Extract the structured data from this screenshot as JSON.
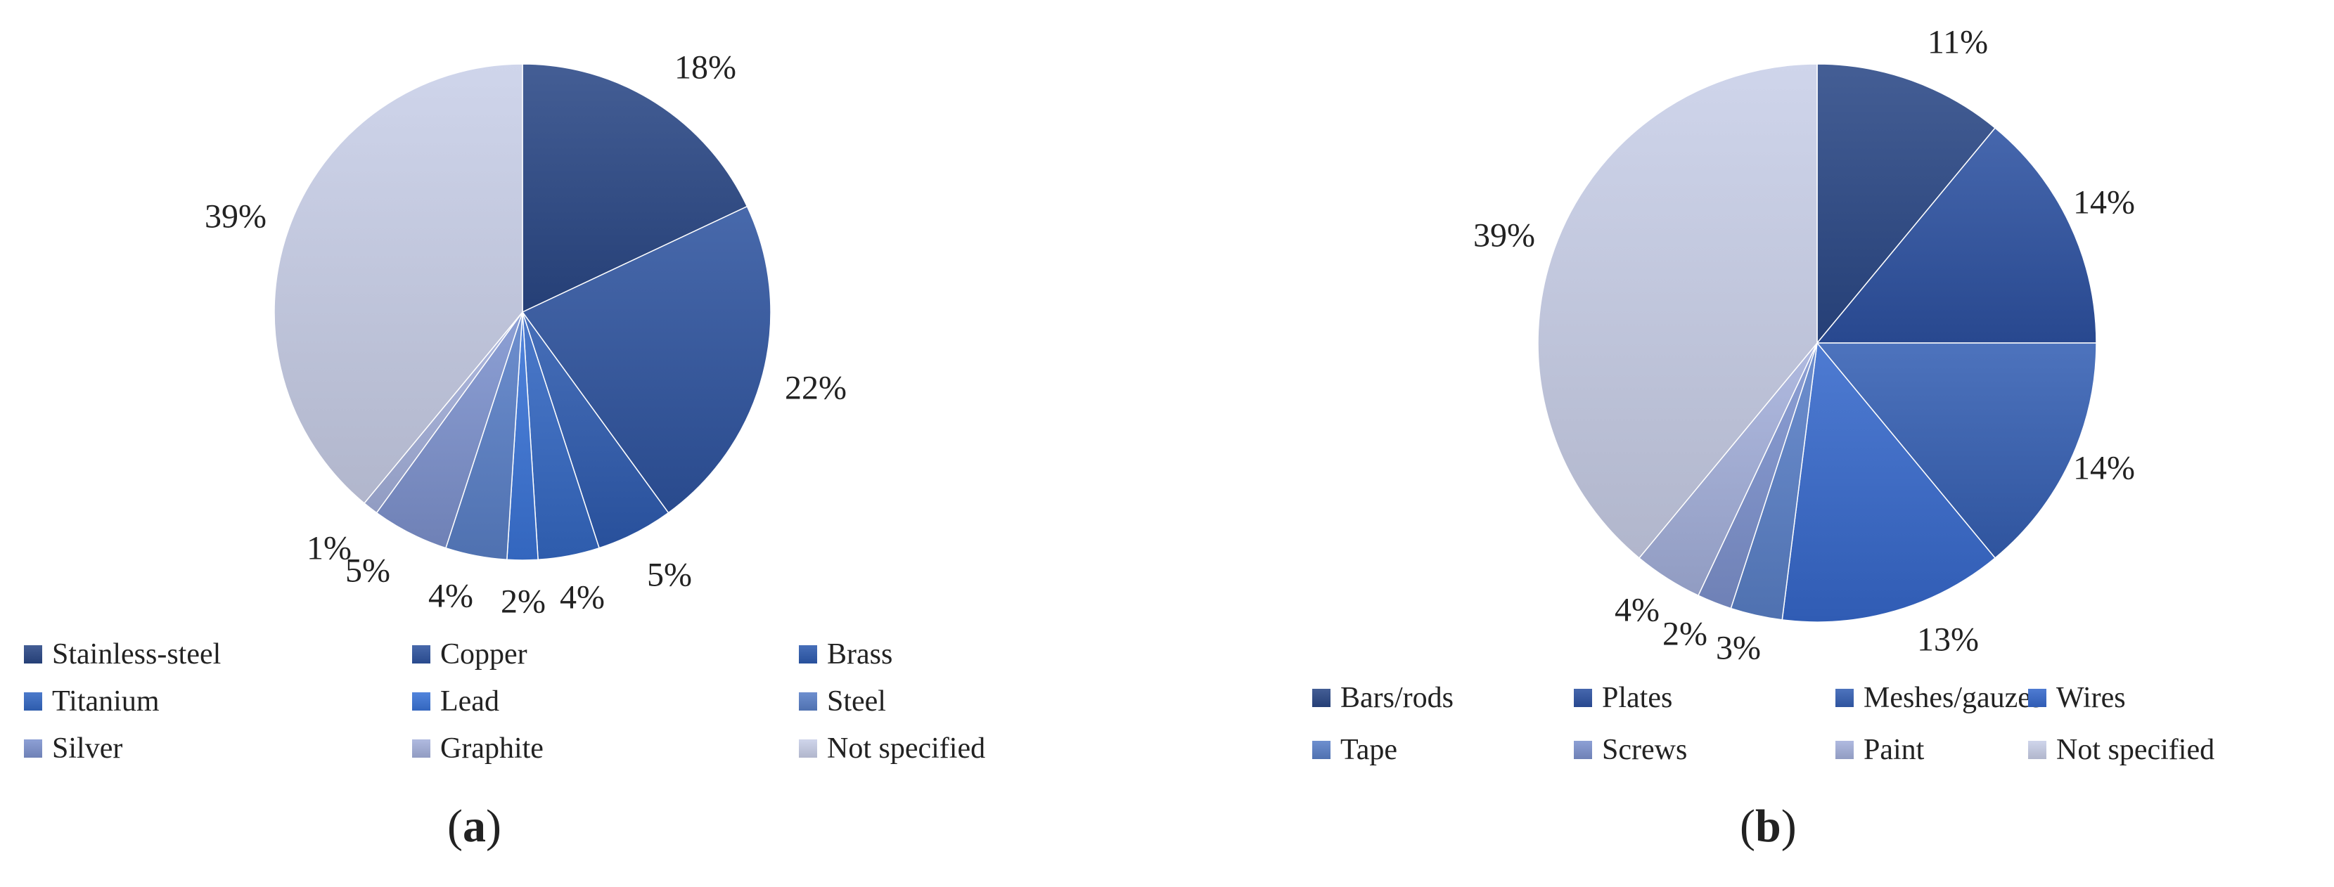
{
  "chart_data": [
    {
      "type": "pie",
      "caption": "a",
      "series": [
        {
          "label": "Stainless-steel",
          "value": 18,
          "display": "18%"
        },
        {
          "label": "Copper",
          "value": 22,
          "display": "22%"
        },
        {
          "label": "Brass",
          "value": 5,
          "display": "5%"
        },
        {
          "label": "Titanium",
          "value": 4,
          "display": "4%"
        },
        {
          "label": "Lead",
          "value": 2,
          "display": "2%"
        },
        {
          "label": "Steel",
          "value": 4,
          "display": "4%"
        },
        {
          "label": "Silver",
          "value": 5,
          "display": "5%"
        },
        {
          "label": "Graphite",
          "value": 1,
          "display": "1%"
        },
        {
          "label": "Not specified",
          "value": 39,
          "display": "39%"
        }
      ],
      "colors": [
        "#2a4886",
        "#2f54a0",
        "#2e5bb0",
        "#3468c4",
        "#3a74d8",
        "#5a80c8",
        "#7e93cf",
        "#a5b1dc",
        "#c9cfe8"
      ],
      "legend_position": "bottom",
      "legend_columns": 3
    },
    {
      "type": "pie",
      "caption": "b",
      "series": [
        {
          "label": "Bars/rods",
          "value": 11,
          "display": "11%"
        },
        {
          "label": "Plates",
          "value": 14,
          "display": "14%"
        },
        {
          "label": "Meshes/gauzes",
          "value": 14,
          "display": "14%"
        },
        {
          "label": "Wires",
          "value": 13,
          "display": "13%"
        },
        {
          "label": "Tape",
          "value": 3,
          "display": "3%"
        },
        {
          "label": "Screws",
          "value": 2,
          "display": "2%"
        },
        {
          "label": "Paint",
          "value": 4,
          "display": "4%"
        },
        {
          "label": "Not specified",
          "value": 39,
          "display": "39%"
        }
      ],
      "colors": [
        "#2a4886",
        "#2d52a2",
        "#3560b4",
        "#3669cc",
        "#5a80c8",
        "#7e93cf",
        "#a5b1dc",
        "#c9cfe8"
      ],
      "legend_position": "bottom",
      "legend_columns": 4
    }
  ]
}
